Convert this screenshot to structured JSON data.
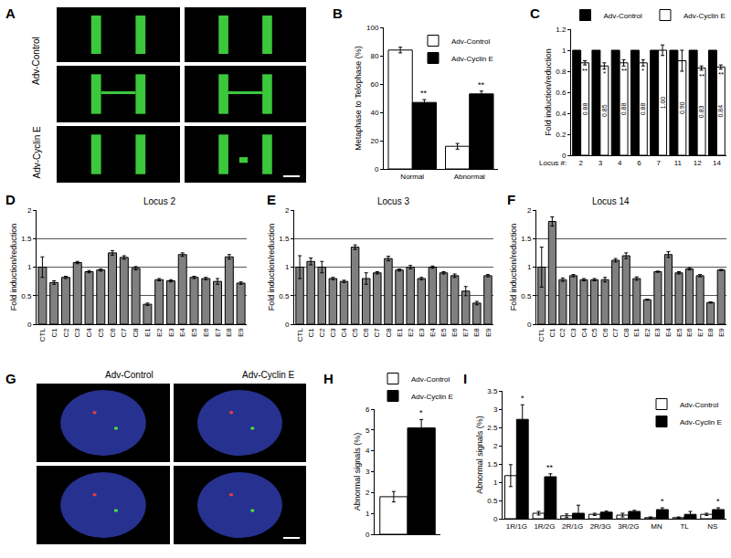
{
  "images": [
    {
      "label": "A",
      "row_labels": [
        "Adv-Control",
        "Adv-Cyclin E"
      ]
    },
    {
      "label": "G",
      "column_labels": [
        "Adv-Control",
        "Adv-Cyclin E"
      ]
    }
  ],
  "chart_data": [
    {
      "label": "B",
      "type": "bar",
      "y_label": "Metaphase to Telophase (%)",
      "categories": [
        "Normal",
        "Abnormal"
      ],
      "series": [
        {
          "name": "Adv-Control",
          "color": "#ffffff",
          "values": [
            84,
            16
          ],
          "errors": [
            2,
            2
          ]
        },
        {
          "name": "Adv-Cyclin E",
          "color": "#000000",
          "values": [
            47,
            53
          ],
          "errors": [
            2,
            2
          ],
          "significance": [
            "**",
            "**"
          ]
        }
      ],
      "ylim": [
        0,
        100
      ],
      "yticks": [
        0,
        20,
        40,
        60,
        80,
        100
      ],
      "legend": "top right",
      "grid": false
    },
    {
      "label": "C",
      "type": "bar",
      "y_label": "Fold induction/reduction",
      "x_label": "Locus #:",
      "categories": [
        "2",
        "3",
        "4",
        "6",
        "7",
        "11",
        "12",
        "14"
      ],
      "series": [
        {
          "name": "Adv-Control",
          "color": "#000000",
          "values": [
            1,
            1,
            1,
            1,
            1,
            1,
            1,
            1
          ]
        },
        {
          "name": "Adv-Cyclin E",
          "color": "#ffffff",
          "values": [
            0.88,
            0.85,
            0.88,
            0.88,
            1.0,
            0.9,
            0.83,
            0.84
          ],
          "value_labels": [
            "0.88",
            "0.85",
            "0.88",
            "0.88",
            "1.00",
            "0.90",
            "0.83",
            "0.84"
          ],
          "errors": [
            0.02,
            0.03,
            0.03,
            0.03,
            0.05,
            0.1,
            0.02,
            0.02
          ],
          "significance": [
            "**",
            "*",
            "**",
            "*",
            null,
            null,
            "**",
            "**"
          ]
        }
      ],
      "ylim": [
        0,
        1.2
      ],
      "yticks": [
        0,
        0.2,
        0.4,
        0.6,
        0.8,
        1,
        1.2
      ],
      "legend": "top",
      "data_labels": true,
      "grid": false
    },
    {
      "label": "D",
      "type": "bar",
      "title": "Locus 2",
      "y_label": "Fold induction/reduction",
      "categories": [
        "CTL",
        "C1",
        "C2",
        "C3",
        "C4",
        "C5",
        "C6",
        "C7",
        "C8",
        "E1",
        "E2",
        "E3",
        "E4",
        "E5",
        "E6",
        "E7",
        "E8",
        "E9"
      ],
      "values": [
        1.0,
        0.73,
        0.82,
        1.08,
        0.92,
        0.95,
        1.25,
        1.17,
        0.98,
        0.35,
        0.78,
        0.76,
        1.22,
        0.82,
        0.8,
        0.75,
        1.18,
        0.72
      ],
      "errors": [
        0.18,
        0.03,
        0.02,
        0.02,
        0.02,
        0.02,
        0.04,
        0.03,
        0.03,
        0.02,
        0.02,
        0.02,
        0.03,
        0.02,
        0.02,
        0.05,
        0.04,
        0.02
      ],
      "color": "#808080",
      "ylim": [
        0,
        2
      ],
      "yticks": [
        0,
        0.5,
        1,
        1.5,
        2
      ],
      "grid": true
    },
    {
      "label": "E",
      "type": "bar",
      "title": "Locus 3",
      "y_label": "Fold induction/reduction",
      "categories": [
        "CTL",
        "C1",
        "C2",
        "C3",
        "C4",
        "C5",
        "C6",
        "C7",
        "C8",
        "E1",
        "E2",
        "E3",
        "E4",
        "E5",
        "E6",
        "E7",
        "E8",
        "E9"
      ],
      "values": [
        1.0,
        1.1,
        1.0,
        0.8,
        0.75,
        1.35,
        0.8,
        0.9,
        1.15,
        0.95,
        1.0,
        0.8,
        1.0,
        0.9,
        0.85,
        0.58,
        0.37,
        0.85
      ],
      "errors": [
        0.2,
        0.06,
        0.1,
        0.02,
        0.02,
        0.04,
        0.1,
        0.02,
        0.04,
        0.02,
        0.03,
        0.02,
        0.02,
        0.02,
        0.03,
        0.08,
        0.03,
        0.02
      ],
      "color": "#808080",
      "ylim": [
        0,
        2
      ],
      "yticks": [
        0,
        0.5,
        1,
        1.5,
        2
      ],
      "grid": true
    },
    {
      "label": "F",
      "type": "bar",
      "title": "Locus 14",
      "y_label": "Fold induction/reduction",
      "categories": [
        "CTL",
        "C1",
        "C2",
        "C3",
        "C4",
        "C5",
        "C6",
        "C7",
        "C8",
        "E1",
        "E2",
        "E3",
        "E4",
        "E5",
        "E6",
        "E7",
        "E8",
        "E9"
      ],
      "values": [
        1.0,
        1.8,
        0.78,
        0.85,
        0.78,
        0.78,
        0.78,
        1.12,
        1.2,
        0.8,
        0.43,
        0.92,
        1.22,
        0.9,
        0.97,
        0.85,
        0.38,
        0.95
      ],
      "errors": [
        0.35,
        0.08,
        0.03,
        0.02,
        0.02,
        0.02,
        0.04,
        0.03,
        0.05,
        0.03,
        0.01,
        0.01,
        0.05,
        0.02,
        0.02,
        0.02,
        0.01,
        0.01
      ],
      "color": "#808080",
      "ylim": [
        0,
        2
      ],
      "yticks": [
        0,
        0.5,
        1,
        1.5,
        2
      ],
      "grid": true
    },
    {
      "label": "H",
      "type": "bar",
      "y_label": "Abnormal signals (%)",
      "categories": [
        null
      ],
      "series": [
        {
          "name": "Adv-Control",
          "color": "#ffffff",
          "values": [
            1.8
          ],
          "errors": [
            0.25
          ]
        },
        {
          "name": "Adv-Cyclin E",
          "color": "#000000",
          "values": [
            5.1
          ],
          "errors": [
            0.4
          ],
          "significance": [
            "*"
          ]
        }
      ],
      "ylim": [
        0,
        6
      ],
      "yticks": [
        0,
        1,
        2,
        3,
        4,
        5,
        6
      ],
      "legend": "top left",
      "grid": false
    },
    {
      "label": "I",
      "type": "bar",
      "y_label": "Abnormal signals (%)",
      "categories": [
        "1R/1G",
        "1R/2G",
        "2R/1G",
        "2R/3G",
        "3R/2G",
        "MN",
        "TL",
        "NS"
      ],
      "series": [
        {
          "name": "Adv-Control",
          "color": "#ffffff",
          "values": [
            1.18,
            0.15,
            0.08,
            0.12,
            0.1,
            0.03,
            0.03,
            0.12
          ],
          "errors": [
            0.3,
            0.05,
            0.05,
            0.03,
            0.05,
            0.02,
            0.02,
            0.03
          ]
        },
        {
          "name": "Adv-Cyclin E",
          "color": "#000000",
          "values": [
            2.72,
            1.15,
            0.15,
            0.18,
            0.2,
            0.25,
            0.12,
            0.25
          ],
          "errors": [
            0.4,
            0.08,
            0.22,
            0.03,
            0.03,
            0.05,
            0.08,
            0.05
          ],
          "significance": [
            "*",
            "**",
            null,
            null,
            null,
            "*",
            null,
            "*"
          ]
        }
      ],
      "ylim": [
        0,
        3.5
      ],
      "yticks": [
        0,
        0.5,
        1,
        1.5,
        2,
        2.5,
        3,
        3.5
      ],
      "legend": "top right",
      "grid": false
    }
  ]
}
